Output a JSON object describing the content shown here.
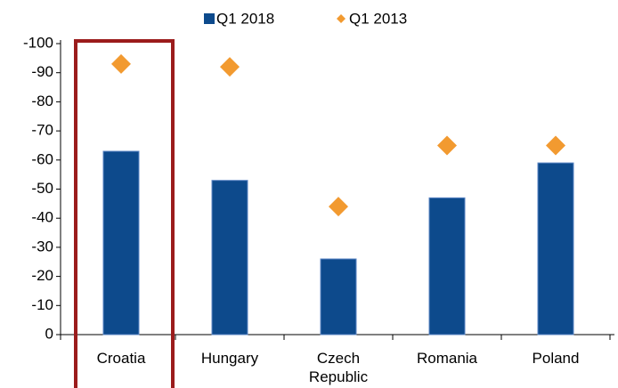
{
  "chart_data": {
    "type": "bar",
    "categories": [
      "Croatia",
      "Hungary",
      "Czech Republic",
      "Romania",
      "Poland"
    ],
    "series": [
      {
        "name": "Q1 2018",
        "type": "bar",
        "color": "#0d4a8c",
        "values": [
          -63,
          -53,
          -26,
          -47,
          -59
        ]
      },
      {
        "name": "Q1 2013",
        "type": "scatter",
        "marker": "diamond",
        "color": "#f29a30",
        "values": [
          -93,
          -92,
          -44,
          -65,
          -65
        ]
      }
    ],
    "ylim": [
      0,
      -100
    ],
    "yticks": [
      0,
      -10,
      -20,
      -30,
      -40,
      -50,
      -60,
      -70,
      -80,
      -90,
      -100
    ],
    "legend": "top",
    "grid": false
  }
}
